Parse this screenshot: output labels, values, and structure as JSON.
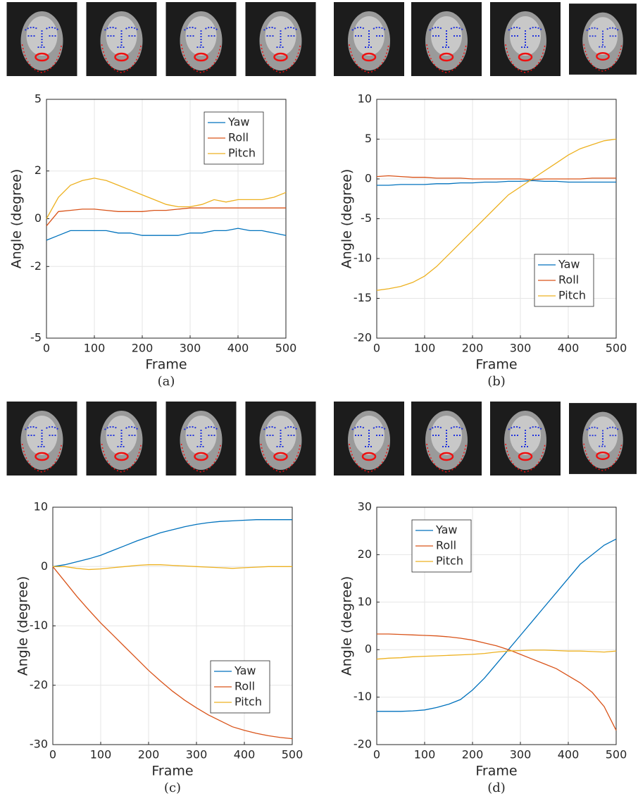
{
  "chart_data": [
    {
      "type": "line",
      "caption": "(a)",
      "xlabel": "Frame",
      "ylabel": "Angle (degree)",
      "grid": true,
      "legend": "upper right",
      "x": [
        0,
        25,
        50,
        75,
        100,
        125,
        150,
        175,
        200,
        225,
        250,
        275,
        300,
        325,
        350,
        375,
        400,
        425,
        450,
        475,
        500
      ],
      "xlim": [
        0,
        500
      ],
      "xticks": [
        0,
        100,
        200,
        300,
        400,
        500
      ],
      "ylim": [
        -5,
        5
      ],
      "yticks": [
        -5,
        -2,
        0,
        2,
        5
      ],
      "series": [
        {
          "name": "Yaw",
          "color": "#0072BD",
          "values": [
            -0.9,
            -0.7,
            -0.5,
            -0.5,
            -0.5,
            -0.5,
            -0.6,
            -0.6,
            -0.7,
            -0.7,
            -0.7,
            -0.7,
            -0.6,
            -0.6,
            -0.5,
            -0.5,
            -0.4,
            -0.5,
            -0.5,
            -0.6,
            -0.7
          ]
        },
        {
          "name": "Roll",
          "color": "#D95319",
          "values": [
            -0.3,
            0.3,
            0.35,
            0.4,
            0.4,
            0.35,
            0.3,
            0.3,
            0.3,
            0.35,
            0.35,
            0.4,
            0.45,
            0.45,
            0.45,
            0.45,
            0.45,
            0.45,
            0.45,
            0.45,
            0.45
          ]
        },
        {
          "name": "Pitch",
          "color": "#EDB120",
          "values": [
            0,
            0.9,
            1.4,
            1.6,
            1.7,
            1.6,
            1.4,
            1.2,
            1.0,
            0.8,
            0.6,
            0.5,
            0.5,
            0.6,
            0.8,
            0.7,
            0.8,
            0.8,
            0.8,
            0.9,
            1.1
          ]
        }
      ]
    },
    {
      "type": "line",
      "caption": "(b)",
      "xlabel": "Frame",
      "ylabel": "Angle (degree)",
      "grid": true,
      "legend": "lower right",
      "x": [
        0,
        25,
        50,
        75,
        100,
        125,
        150,
        175,
        200,
        225,
        250,
        275,
        300,
        325,
        350,
        375,
        400,
        425,
        450,
        475,
        500
      ],
      "xlim": [
        0,
        500
      ],
      "xticks": [
        0,
        100,
        200,
        300,
        400,
        500
      ],
      "ylim": [
        -20,
        10
      ],
      "yticks": [
        -20,
        -15,
        -10,
        -5,
        0,
        5,
        10
      ],
      "series": [
        {
          "name": "Yaw",
          "color": "#0072BD",
          "values": [
            -0.8,
            -0.8,
            -0.7,
            -0.7,
            -0.7,
            -0.6,
            -0.6,
            -0.5,
            -0.5,
            -0.4,
            -0.4,
            -0.3,
            -0.3,
            -0.2,
            -0.3,
            -0.3,
            -0.4,
            -0.4,
            -0.4,
            -0.4,
            -0.4
          ]
        },
        {
          "name": "Roll",
          "color": "#D95319",
          "values": [
            0.3,
            0.4,
            0.3,
            0.2,
            0.2,
            0.1,
            0.1,
            0.1,
            0,
            0,
            0,
            0,
            0,
            -0.1,
            0,
            0,
            0,
            0,
            0.1,
            0.1,
            0.1
          ]
        },
        {
          "name": "Pitch",
          "color": "#EDB120",
          "values": [
            -14,
            -13.8,
            -13.5,
            -13,
            -12.2,
            -11,
            -9.5,
            -8,
            -6.5,
            -5,
            -3.5,
            -2,
            -1,
            0,
            1,
            2,
            3,
            3.8,
            4.3,
            4.8,
            5
          ]
        }
      ]
    },
    {
      "type": "line",
      "caption": "(c)",
      "xlabel": "Frame",
      "ylabel": "Angle (degree)",
      "grid": true,
      "legend": "lower right",
      "x": [
        0,
        25,
        50,
        75,
        100,
        125,
        150,
        175,
        200,
        225,
        250,
        275,
        300,
        325,
        350,
        375,
        400,
        425,
        450,
        475,
        500
      ],
      "xlim": [
        0,
        500
      ],
      "xticks": [
        0,
        100,
        200,
        300,
        400,
        500
      ],
      "ylim": [
        -30,
        10
      ],
      "yticks": [
        -30,
        -20,
        -10,
        0,
        10
      ],
      "series": [
        {
          "name": "Yaw",
          "color": "#0072BD",
          "values": [
            0,
            0.3,
            0.8,
            1.3,
            1.9,
            2.7,
            3.5,
            4.3,
            5.0,
            5.7,
            6.2,
            6.7,
            7.1,
            7.4,
            7.6,
            7.7,
            7.8,
            7.9,
            7.9,
            7.9,
            7.9
          ]
        },
        {
          "name": "Roll",
          "color": "#D95319",
          "values": [
            0,
            -2.5,
            -5,
            -7.3,
            -9.5,
            -11.5,
            -13.5,
            -15.5,
            -17.5,
            -19.3,
            -21,
            -22.5,
            -23.8,
            -25,
            -26,
            -27,
            -27.6,
            -28.1,
            -28.5,
            -28.8,
            -29
          ]
        },
        {
          "name": "Pitch",
          "color": "#EDB120",
          "values": [
            0,
            0,
            -0.3,
            -0.5,
            -0.4,
            -0.2,
            0,
            0.2,
            0.3,
            0.3,
            0.2,
            0.1,
            0,
            -0.1,
            -0.2,
            -0.3,
            -0.2,
            -0.1,
            0,
            0,
            0
          ]
        }
      ]
    },
    {
      "type": "line",
      "caption": "(d)",
      "xlabel": "Frame",
      "ylabel": "Angle (degree)",
      "grid": true,
      "legend": "upper left",
      "x": [
        0,
        25,
        50,
        75,
        100,
        125,
        150,
        175,
        200,
        225,
        250,
        275,
        300,
        325,
        350,
        375,
        400,
        425,
        450,
        475,
        500
      ],
      "xlim": [
        0,
        500
      ],
      "xticks": [
        0,
        100,
        200,
        300,
        400,
        500
      ],
      "ylim": [
        -20,
        30
      ],
      "yticks": [
        -20,
        -10,
        0,
        10,
        20,
        30
      ],
      "series": [
        {
          "name": "Yaw",
          "color": "#0072BD",
          "values": [
            -13,
            -13,
            -13,
            -12.9,
            -12.7,
            -12.2,
            -11.5,
            -10.5,
            -8.5,
            -6,
            -3,
            0,
            3,
            6,
            9,
            12,
            15,
            18,
            20,
            22,
            23.3
          ]
        },
        {
          "name": "Roll",
          "color": "#D95319",
          "values": [
            3.3,
            3.3,
            3.2,
            3.1,
            3,
            2.9,
            2.7,
            2.4,
            2,
            1.4,
            0.8,
            0,
            -1,
            -2,
            -3,
            -4,
            -5.5,
            -7,
            -9,
            -12,
            -17
          ]
        },
        {
          "name": "Pitch",
          "color": "#EDB120",
          "values": [
            -2,
            -1.8,
            -1.7,
            -1.5,
            -1.4,
            -1.3,
            -1.2,
            -1.1,
            -1,
            -0.8,
            -0.5,
            -0.3,
            -0.2,
            -0.1,
            -0.1,
            -0.2,
            -0.3,
            -0.3,
            -0.4,
            -0.5,
            -0.3
          ]
        }
      ]
    }
  ]
}
